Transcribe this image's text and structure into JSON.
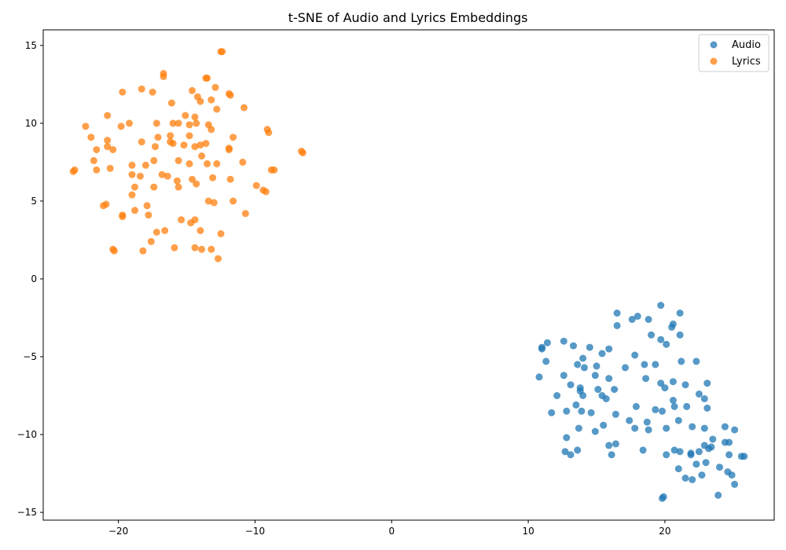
{
  "chart_data": {
    "type": "scatter",
    "title": "t-SNE of Audio and Lyrics Embeddings",
    "xlabel": "",
    "ylabel": "",
    "xlim": [
      -25.5,
      28.0
    ],
    "ylim": [
      -15.5,
      16.0
    ],
    "x_ticks": [
      -20,
      -10,
      0,
      10,
      20
    ],
    "y_ticks": [
      -15,
      -10,
      -5,
      0,
      5,
      10,
      15
    ],
    "grid": false,
    "legend": "top-right",
    "series": [
      {
        "name": "Audio",
        "color": "#1f77b4",
        "points": [
          [
            19.7,
            -1.7
          ],
          [
            21.1,
            -2.2
          ],
          [
            16.5,
            -2.2
          ],
          [
            18.0,
            -2.4
          ],
          [
            17.6,
            -2.6
          ],
          [
            18.8,
            -2.6
          ],
          [
            20.6,
            -2.9
          ],
          [
            20.5,
            -3.1
          ],
          [
            16.5,
            -3.0
          ],
          [
            19.0,
            -3.6
          ],
          [
            21.1,
            -3.6
          ],
          [
            19.7,
            -3.9
          ],
          [
            20.1,
            -4.2
          ],
          [
            11.4,
            -4.1
          ],
          [
            12.6,
            -4.0
          ],
          [
            13.3,
            -4.3
          ],
          [
            14.5,
            -4.4
          ],
          [
            15.9,
            -4.5
          ],
          [
            11.0,
            -4.5
          ],
          [
            11.0,
            -4.4
          ],
          [
            15.4,
            -4.8
          ],
          [
            17.8,
            -4.9
          ],
          [
            14.0,
            -5.1
          ],
          [
            11.3,
            -5.3
          ],
          [
            13.6,
            -5.5
          ],
          [
            14.1,
            -5.7
          ],
          [
            15.0,
            -5.6
          ],
          [
            17.1,
            -5.7
          ],
          [
            18.5,
            -5.5
          ],
          [
            19.3,
            -5.5
          ],
          [
            21.2,
            -5.3
          ],
          [
            22.3,
            -5.3
          ],
          [
            10.8,
            -6.3
          ],
          [
            12.6,
            -6.2
          ],
          [
            14.9,
            -6.2
          ],
          [
            15.9,
            -6.4
          ],
          [
            18.6,
            -6.4
          ],
          [
            20.6,
            -6.6
          ],
          [
            19.7,
            -6.7
          ],
          [
            21.5,
            -6.8
          ],
          [
            23.1,
            -6.7
          ],
          [
            13.1,
            -6.8
          ],
          [
            13.8,
            -7.0
          ],
          [
            13.8,
            -7.2
          ],
          [
            15.1,
            -7.1
          ],
          [
            16.3,
            -7.1
          ],
          [
            20.0,
            -7.0
          ],
          [
            12.1,
            -7.5
          ],
          [
            14.0,
            -7.5
          ],
          [
            15.4,
            -7.5
          ],
          [
            15.7,
            -7.7
          ],
          [
            20.6,
            -7.8
          ],
          [
            22.5,
            -7.4
          ],
          [
            22.9,
            -7.7
          ],
          [
            13.5,
            -8.1
          ],
          [
            17.9,
            -8.2
          ],
          [
            20.7,
            -8.2
          ],
          [
            21.6,
            -8.2
          ],
          [
            23.1,
            -8.3
          ],
          [
            11.7,
            -8.6
          ],
          [
            12.8,
            -8.5
          ],
          [
            13.9,
            -8.5
          ],
          [
            14.6,
            -8.6
          ],
          [
            16.4,
            -8.7
          ],
          [
            19.3,
            -8.4
          ],
          [
            19.8,
            -8.5
          ],
          [
            17.4,
            -9.1
          ],
          [
            18.7,
            -9.2
          ],
          [
            21.0,
            -9.1
          ],
          [
            13.7,
            -9.6
          ],
          [
            15.5,
            -9.4
          ],
          [
            17.8,
            -9.6
          ],
          [
            18.8,
            -9.7
          ],
          [
            20.1,
            -9.6
          ],
          [
            22.0,
            -9.5
          ],
          [
            22.9,
            -9.6
          ],
          [
            24.4,
            -9.5
          ],
          [
            25.1,
            -9.7
          ],
          [
            14.9,
            -9.8
          ],
          [
            12.8,
            -10.2
          ],
          [
            23.5,
            -10.3
          ],
          [
            24.4,
            -10.5
          ],
          [
            24.7,
            -10.5
          ],
          [
            22.9,
            -10.7
          ],
          [
            23.4,
            -10.8
          ],
          [
            23.2,
            -10.9
          ],
          [
            16.4,
            -10.6
          ],
          [
            15.9,
            -10.7
          ],
          [
            12.7,
            -11.1
          ],
          [
            13.6,
            -11.0
          ],
          [
            18.4,
            -11.0
          ],
          [
            20.7,
            -11.0
          ],
          [
            21.1,
            -11.1
          ],
          [
            22.5,
            -11.1
          ],
          [
            13.1,
            -11.3
          ],
          [
            16.1,
            -11.3
          ],
          [
            20.1,
            -11.3
          ],
          [
            21.9,
            -11.3
          ],
          [
            21.9,
            -11.2
          ],
          [
            24.7,
            -11.3
          ],
          [
            25.6,
            -11.4
          ],
          [
            25.8,
            -11.4
          ],
          [
            22.3,
            -11.9
          ],
          [
            23.0,
            -11.8
          ],
          [
            24.0,
            -12.1
          ],
          [
            21.0,
            -12.2
          ],
          [
            24.6,
            -12.4
          ],
          [
            24.9,
            -12.6
          ],
          [
            22.7,
            -12.6
          ],
          [
            21.5,
            -12.8
          ],
          [
            22.0,
            -12.9
          ],
          [
            25.1,
            -13.2
          ],
          [
            23.9,
            -13.9
          ],
          [
            19.9,
            -14.0
          ],
          [
            19.8,
            -14.1
          ]
        ]
      },
      {
        "name": "Lyrics",
        "color": "#ff7f0e",
        "points": [
          [
            -12.5,
            14.6
          ],
          [
            -12.4,
            14.6
          ],
          [
            -16.7,
            13.2
          ],
          [
            -16.7,
            13.0
          ],
          [
            -13.5,
            12.9
          ],
          [
            -13.6,
            12.9
          ],
          [
            -18.3,
            12.2
          ],
          [
            -19.7,
            12.0
          ],
          [
            -17.5,
            12.0
          ],
          [
            -14.6,
            12.1
          ],
          [
            -12.9,
            12.3
          ],
          [
            -11.9,
            11.9
          ],
          [
            -11.8,
            11.8
          ],
          [
            -14.2,
            11.7
          ],
          [
            -14.0,
            11.4
          ],
          [
            -13.2,
            11.5
          ],
          [
            -16.1,
            11.3
          ],
          [
            -12.8,
            10.9
          ],
          [
            -10.8,
            11.0
          ],
          [
            -20.8,
            10.5
          ],
          [
            -15.1,
            10.5
          ],
          [
            -14.4,
            10.4
          ],
          [
            -17.2,
            10.0
          ],
          [
            -16.0,
            10.0
          ],
          [
            -15.6,
            10.0
          ],
          [
            -14.3,
            10.0
          ],
          [
            -13.4,
            9.9
          ],
          [
            -14.8,
            9.9
          ],
          [
            -19.2,
            10.0
          ],
          [
            -19.8,
            9.8
          ],
          [
            -22.4,
            9.8
          ],
          [
            -13.2,
            9.6
          ],
          [
            -9.1,
            9.6
          ],
          [
            -9.0,
            9.4
          ],
          [
            -22.0,
            9.1
          ],
          [
            -16.2,
            9.2
          ],
          [
            -17.1,
            9.1
          ],
          [
            -14.8,
            9.2
          ],
          [
            -11.6,
            9.1
          ],
          [
            -20.8,
            8.9
          ],
          [
            -18.3,
            8.8
          ],
          [
            -16.2,
            8.8
          ],
          [
            -16.0,
            8.7
          ],
          [
            -13.6,
            8.7
          ],
          [
            -14.0,
            8.6
          ],
          [
            -14.4,
            8.5
          ],
          [
            -15.2,
            8.6
          ],
          [
            -17.3,
            8.5
          ],
          [
            -20.8,
            8.5
          ],
          [
            -20.4,
            8.3
          ],
          [
            -21.6,
            8.3
          ],
          [
            -11.9,
            8.4
          ],
          [
            -11.9,
            8.3
          ],
          [
            -6.6,
            8.2
          ],
          [
            -6.5,
            8.1
          ],
          [
            -13.9,
            7.9
          ],
          [
            -17.4,
            7.6
          ],
          [
            -15.6,
            7.6
          ],
          [
            -14.8,
            7.4
          ],
          [
            -13.5,
            7.4
          ],
          [
            -12.8,
            7.4
          ],
          [
            -10.9,
            7.5
          ],
          [
            -21.8,
            7.6
          ],
          [
            -19.0,
            7.3
          ],
          [
            -18.0,
            7.3
          ],
          [
            -20.6,
            7.1
          ],
          [
            -21.6,
            7.0
          ],
          [
            -23.3,
            6.9
          ],
          [
            -23.2,
            7.0
          ],
          [
            -8.8,
            7.0
          ],
          [
            -8.6,
            7.0
          ],
          [
            -19.0,
            6.7
          ],
          [
            -18.4,
            6.6
          ],
          [
            -16.8,
            6.7
          ],
          [
            -16.4,
            6.6
          ],
          [
            -15.7,
            6.3
          ],
          [
            -14.6,
            6.4
          ],
          [
            -14.3,
            6.1
          ],
          [
            -13.1,
            6.5
          ],
          [
            -11.8,
            6.4
          ],
          [
            -9.9,
            6.0
          ],
          [
            -17.4,
            5.9
          ],
          [
            -18.8,
            5.9
          ],
          [
            -15.6,
            5.9
          ],
          [
            -9.4,
            5.7
          ],
          [
            -9.2,
            5.6
          ],
          [
            -19.0,
            5.4
          ],
          [
            -13.4,
            5.0
          ],
          [
            -13.0,
            4.9
          ],
          [
            -11.6,
            5.0
          ],
          [
            -20.9,
            4.8
          ],
          [
            -21.1,
            4.7
          ],
          [
            -17.9,
            4.7
          ],
          [
            -18.8,
            4.4
          ],
          [
            -10.7,
            4.2
          ],
          [
            -19.7,
            4.1
          ],
          [
            -19.7,
            4.0
          ],
          [
            -17.8,
            4.1
          ],
          [
            -15.4,
            3.8
          ],
          [
            -14.4,
            3.8
          ],
          [
            -14.7,
            3.6
          ],
          [
            -17.2,
            3.0
          ],
          [
            -16.6,
            3.1
          ],
          [
            -14.0,
            3.1
          ],
          [
            -12.5,
            2.9
          ],
          [
            -17.6,
            2.4
          ],
          [
            -20.4,
            1.9
          ],
          [
            -20.3,
            1.8
          ],
          [
            -18.2,
            1.8
          ],
          [
            -15.9,
            2.0
          ],
          [
            -14.4,
            2.0
          ],
          [
            -13.9,
            1.9
          ],
          [
            -13.2,
            1.9
          ],
          [
            -12.7,
            1.3
          ]
        ]
      }
    ]
  }
}
